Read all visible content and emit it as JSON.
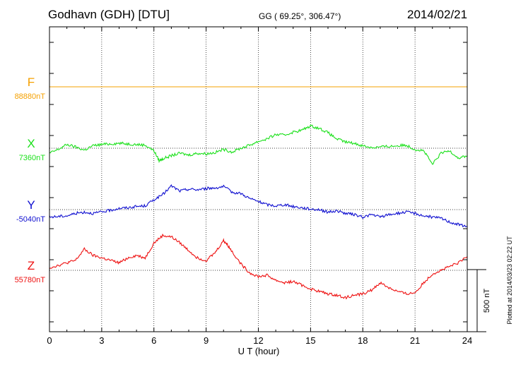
{
  "header": {
    "station": "Godhavn (GDH)  [DTU]",
    "coords": "GG ( 69.25°, 306.47°)",
    "date": "2014/02/21"
  },
  "footer": {
    "plotted_note": "Plotted at 2014/03/23 02:22 UT"
  },
  "chart_data": {
    "type": "line",
    "xlabel": "U T (hour)",
    "xlim": [
      0,
      24
    ],
    "x_ticks": [
      "0",
      "3",
      "6",
      "9",
      "12",
      "15",
      "18",
      "21",
      "24"
    ],
    "grid": true,
    "scale_bar": {
      "value": 500,
      "label": "500 nT"
    },
    "series": [
      {
        "name": "F",
        "baseline_label": "88880nT",
        "baseline": 88880,
        "color": "#f5a000",
        "x": [
          0,
          24
        ],
        "values": [
          0,
          0
        ]
      },
      {
        "name": "X",
        "baseline_label": "7360nT",
        "baseline": 7360,
        "color": "#1be01b",
        "x": [
          0,
          0.5,
          1,
          1.5,
          2,
          2.5,
          3,
          3.5,
          4,
          4.5,
          5,
          5.5,
          6,
          6.3,
          6.6,
          7,
          7.5,
          8,
          8.5,
          9,
          9.5,
          10,
          10.5,
          11,
          11.5,
          12,
          12.5,
          13,
          13.5,
          14,
          14.5,
          15,
          15.5,
          16,
          16.5,
          17,
          17.5,
          18,
          18.5,
          19,
          19.5,
          20,
          20.5,
          21,
          21.5,
          22,
          22.5,
          23,
          23.5,
          24
        ],
        "values": [
          -40,
          -10,
          30,
          10,
          -15,
          20,
          30,
          35,
          40,
          35,
          30,
          25,
          -20,
          -100,
          -80,
          -60,
          -40,
          -55,
          -40,
          -45,
          -35,
          -10,
          -30,
          0,
          25,
          55,
          75,
          110,
          105,
          130,
          145,
          180,
          160,
          125,
          75,
          50,
          40,
          20,
          5,
          10,
          15,
          20,
          25,
          -10,
          -20,
          -130,
          -40,
          -20,
          -80,
          -60
        ]
      },
      {
        "name": "Y",
        "baseline_label": "-5040nT",
        "baseline": -5040,
        "color": "#1010d0",
        "x": [
          0,
          0.5,
          1,
          1.5,
          2,
          2.5,
          3,
          3.5,
          4,
          4.5,
          5,
          5.5,
          6,
          6.5,
          7,
          7.5,
          8,
          8.5,
          9,
          9.5,
          10,
          10.5,
          11,
          11.5,
          12,
          12.5,
          13,
          13.5,
          14,
          14.5,
          15,
          15.5,
          16,
          16.5,
          17,
          17.5,
          18,
          18.5,
          19,
          19.5,
          20,
          20.5,
          21,
          21.5,
          22,
          22.5,
          23,
          23.5,
          24
        ],
        "values": [
          -60,
          -55,
          -50,
          -30,
          -20,
          -30,
          -20,
          -5,
          10,
          15,
          25,
          30,
          80,
          120,
          190,
          150,
          165,
          160,
          170,
          175,
          185,
          140,
          130,
          90,
          65,
          40,
          30,
          40,
          25,
          15,
          5,
          0,
          -20,
          -10,
          -30,
          -40,
          -60,
          -40,
          -60,
          -40,
          -30,
          -20,
          -30,
          -50,
          -60,
          -70,
          -100,
          -120,
          -140
        ]
      },
      {
        "name": "Z",
        "baseline_label": "55780nT",
        "baseline": 55780,
        "color": "#ee1010",
        "x": [
          0,
          0.5,
          1,
          1.5,
          2,
          2.5,
          3,
          3.5,
          4,
          4.5,
          5,
          5.5,
          6,
          6.5,
          7,
          7.5,
          8,
          8.5,
          9,
          9.5,
          10,
          10.2,
          10.5,
          11,
          11.5,
          12,
          12.5,
          13,
          13.5,
          14,
          14.5,
          15,
          15.5,
          16,
          16.5,
          17,
          17.5,
          18,
          18.5,
          19,
          19.5,
          20,
          20.5,
          21,
          21.5,
          22,
          22.5,
          23,
          23.5,
          24
        ],
        "values": [
          20,
          40,
          60,
          80,
          170,
          120,
          100,
          80,
          60,
          100,
          120,
          100,
          220,
          280,
          270,
          220,
          160,
          100,
          80,
          140,
          240,
          210,
          150,
          50,
          -20,
          -50,
          -40,
          -80,
          -100,
          -90,
          -120,
          -150,
          -170,
          -190,
          -200,
          -220,
          -200,
          -190,
          -160,
          -100,
          -140,
          -170,
          -190,
          -180,
          -100,
          -30,
          0,
          30,
          60,
          110
        ]
      }
    ]
  }
}
